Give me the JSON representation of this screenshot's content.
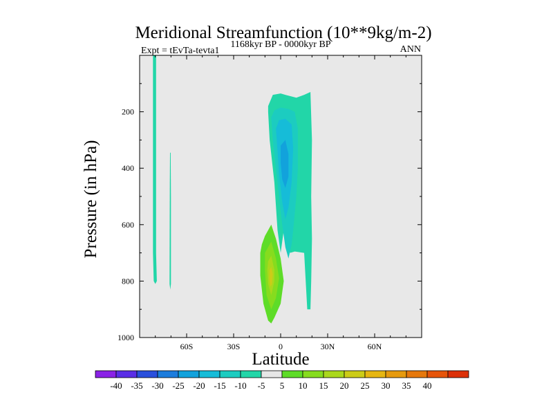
{
  "chart_data": {
    "type": "contour",
    "title": "Meridional Streamfunction (10**9kg/m-2)",
    "left_label": "Expt = tEvTa-tevta1",
    "center_label": "1168kyr BP - 0000kyr BP",
    "right_label": "ANN",
    "xlabel": "Latitude",
    "ylabel": "Pressure (in hPa)",
    "xlim": [
      -90,
      90
    ],
    "ylim": [
      0,
      1000
    ],
    "y_inverted": true,
    "x_ticks": [
      {
        "value": -60,
        "label": "60S"
      },
      {
        "value": -30,
        "label": "30S"
      },
      {
        "value": 0,
        "label": "0"
      },
      {
        "value": 30,
        "label": "30N"
      },
      {
        "value": 60,
        "label": "60N"
      }
    ],
    "y_ticks": [
      {
        "value": 200,
        "label": "200"
      },
      {
        "value": 400,
        "label": "400"
      },
      {
        "value": 600,
        "label": "600"
      },
      {
        "value": 800,
        "label": "800"
      },
      {
        "value": 1000,
        "label": "1000"
      }
    ],
    "background_color": "#e8e8e8",
    "colorbar": {
      "colors": [
        "#8a22e6",
        "#5a2ee6",
        "#2a4fdc",
        "#1c7cdc",
        "#12a2dc",
        "#16bcd8",
        "#1cccc0",
        "#22d6a8",
        "#e6e6e6",
        "#5edc28",
        "#86dc1e",
        "#aad81c",
        "#cccc18",
        "#e6b612",
        "#e69a0e",
        "#e6780c",
        "#e6540a",
        "#dc3008"
      ],
      "labels": [
        "-40",
        "-35",
        "-30",
        "-25",
        "-20",
        "-15",
        "-10",
        "-5",
        "5",
        "10",
        "15",
        "20",
        "25",
        "30",
        "35",
        "40"
      ]
    },
    "regions": [
      {
        "color": "#22d6a8",
        "points": [
          [
            -81.5,
            0
          ],
          [
            -79.5,
            0
          ],
          [
            -79.5,
            700
          ],
          [
            -79,
            800
          ],
          [
            -80,
            810
          ],
          [
            -81,
            800
          ],
          [
            -81.5,
            700
          ]
        ]
      },
      {
        "color": "#22d6a8",
        "points": [
          [
            -70.6,
            345
          ],
          [
            -70.2,
            345
          ],
          [
            -70,
            500
          ],
          [
            -70,
            700
          ],
          [
            -70,
            810
          ],
          [
            -70.4,
            830
          ],
          [
            -70.9,
            810
          ],
          [
            -70.8,
            600
          ],
          [
            -70.7,
            450
          ]
        ]
      },
      {
        "color": "#22d6a8",
        "points": [
          [
            -8,
            180
          ],
          [
            -5,
            140
          ],
          [
            0,
            135
          ],
          [
            3,
            140
          ],
          [
            10,
            150
          ],
          [
            15,
            140
          ],
          [
            19,
            130
          ],
          [
            20,
            300
          ],
          [
            19.5,
            500
          ],
          [
            20,
            650
          ],
          [
            19.5,
            800
          ],
          [
            19,
            900
          ],
          [
            17,
            900
          ],
          [
            15,
            700
          ],
          [
            9,
            695
          ],
          [
            6,
            700
          ],
          [
            4,
            560
          ],
          [
            2,
            620
          ],
          [
            0,
            700
          ],
          [
            -2,
            620
          ],
          [
            -4,
            450
          ],
          [
            -7,
            300
          ],
          [
            -8,
            200
          ]
        ]
      },
      {
        "color": "#1cccc0",
        "points": [
          [
            -6,
            220
          ],
          [
            -4,
            195
          ],
          [
            0,
            185
          ],
          [
            5,
            190
          ],
          [
            9,
            200
          ],
          [
            11,
            260
          ],
          [
            11,
            400
          ],
          [
            10,
            500
          ],
          [
            9,
            560
          ],
          [
            8,
            620
          ],
          [
            7,
            670
          ],
          [
            5,
            720
          ],
          [
            3,
            680
          ],
          [
            1,
            600
          ],
          [
            -1,
            500
          ],
          [
            -3,
            400
          ],
          [
            -5,
            300
          ]
        ]
      },
      {
        "color": "#16bcd8",
        "points": [
          [
            -3,
            260
          ],
          [
            -1,
            230
          ],
          [
            3,
            225
          ],
          [
            7,
            245
          ],
          [
            8,
            330
          ],
          [
            7,
            450
          ],
          [
            5,
            540
          ],
          [
            3,
            580
          ],
          [
            1,
            520
          ],
          [
            -1,
            420
          ],
          [
            -2,
            340
          ]
        ]
      },
      {
        "color": "#12a2dc",
        "points": [
          [
            0,
            320
          ],
          [
            3,
            300
          ],
          [
            5,
            350
          ],
          [
            5,
            430
          ],
          [
            3,
            470
          ],
          [
            1,
            440
          ],
          [
            0,
            380
          ]
        ]
      },
      {
        "color": "#5edc28",
        "points": [
          [
            -12,
            670
          ],
          [
            -10,
            640
          ],
          [
            -6,
            600
          ],
          [
            -3,
            650
          ],
          [
            0,
            720
          ],
          [
            2,
            800
          ],
          [
            0,
            880
          ],
          [
            -4,
            930
          ],
          [
            -6,
            950
          ],
          [
            -8,
            940
          ],
          [
            -11,
            880
          ],
          [
            -13,
            780
          ],
          [
            -13,
            700
          ]
        ]
      },
      {
        "color": "#86dc1e",
        "points": [
          [
            -10,
            700
          ],
          [
            -6,
            660
          ],
          [
            -3,
            720
          ],
          [
            -1,
            790
          ],
          [
            -3,
            860
          ],
          [
            -6,
            900
          ],
          [
            -9,
            850
          ],
          [
            -10,
            760
          ]
        ]
      },
      {
        "color": "#aad81c",
        "points": [
          [
            -8,
            730
          ],
          [
            -6,
            710
          ],
          [
            -4,
            760
          ],
          [
            -4,
            800
          ],
          [
            -6,
            850
          ],
          [
            -8,
            810
          ],
          [
            -8.5,
            760
          ]
        ]
      },
      {
        "color": "#cccc18",
        "points": [
          [
            -7,
            760
          ],
          [
            -6,
            750
          ],
          [
            -5,
            775
          ],
          [
            -5.5,
            810
          ],
          [
            -6.5,
            820
          ],
          [
            -7.3,
            790
          ]
        ]
      }
    ]
  }
}
